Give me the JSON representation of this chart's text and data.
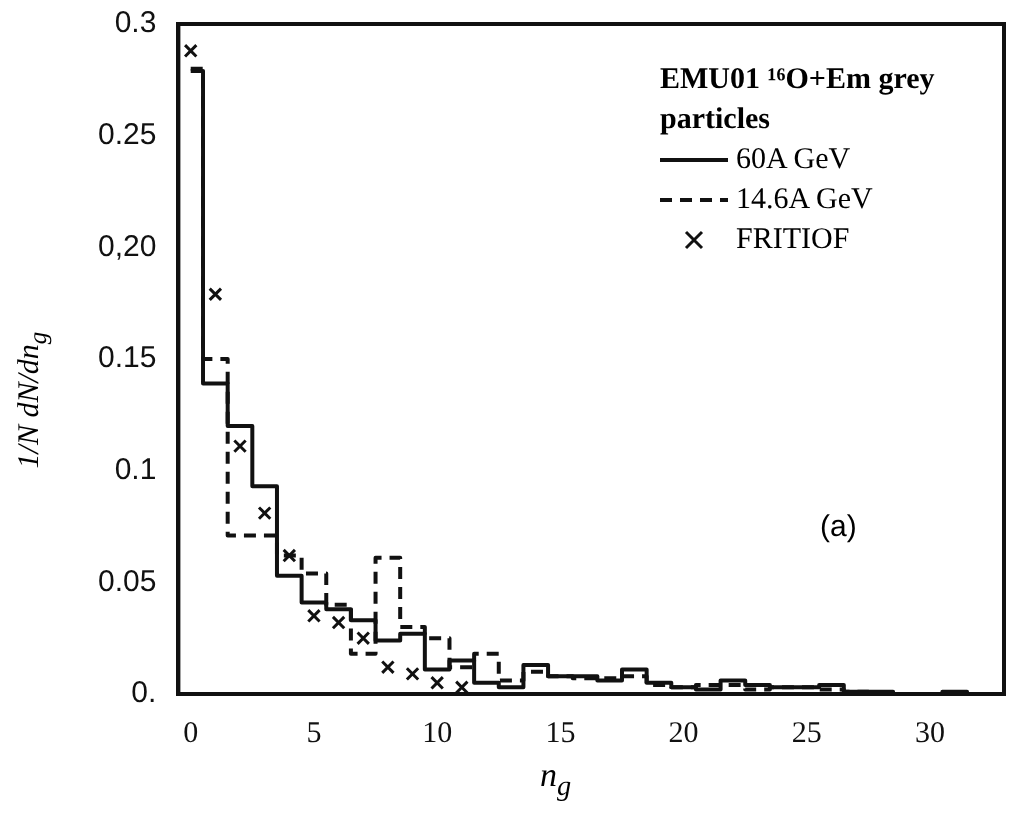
{
  "chart_data": {
    "type": "step",
    "xlabel": "n$_{g}$",
    "ylabel": "1/N dN/dn$_{g}$",
    "legend_title": "EMU01 ¹⁶O+Em grey particles",
    "legend": "top right",
    "x": [
      0,
      1,
      2,
      3,
      4,
      5,
      6,
      7,
      8,
      9,
      10,
      11,
      12,
      13,
      14,
      15,
      16,
      17,
      18,
      19,
      20,
      21,
      22,
      23,
      24,
      25,
      26,
      27,
      28,
      29,
      30,
      31,
      32
    ],
    "series": [
      {
        "name": "60A GeV",
        "color": "#111111",
        "line_style": "solid",
        "values": [
          0.279,
          0.139,
          0.12,
          0.093,
          0.053,
          0.041,
          0.038,
          0.033,
          0.024,
          0.027,
          0.011,
          0.015,
          0.005,
          0.003,
          0.013,
          0.008,
          0.008,
          0.006,
          0.011,
          0.005,
          0.003,
          0.002,
          0.006,
          0.004,
          0.003,
          0.003,
          0.004,
          0.001,
          0.001,
          0,
          0,
          0.001,
          0
        ]
      },
      {
        "name": "14.6A GeV",
        "color": "#111111",
        "line_style": "dashed",
        "values": [
          0.28,
          0.15,
          0.071,
          0.071,
          0.062,
          0.054,
          0.04,
          0.018,
          0.061,
          0.03,
          0.025,
          0.012,
          0.018,
          0.006,
          0.01,
          0.008,
          0.007,
          0.007,
          0.008,
          0.004,
          0.003,
          0.004,
          0.004,
          0.002,
          0.003,
          0.003,
          0.002,
          0.001,
          0,
          0,
          0,
          0,
          0
        ]
      },
      {
        "type": "scatter",
        "name": "FRITIOF",
        "color": "#111111",
        "marker": "cross",
        "x": [
          0,
          1,
          2,
          3,
          4,
          5,
          6,
          7,
          8,
          9,
          10,
          11
        ],
        "values": [
          0.288,
          0.179,
          0.111,
          0.081,
          0.062,
          0.035,
          0.032,
          0.025,
          0.012,
          0.009,
          0.005,
          0.003
        ]
      }
    ],
    "xlim": [
      -0.5,
      33
    ],
    "xticks": [
      0,
      5,
      10,
      15,
      20,
      25,
      30
    ],
    "ylim": [
      0,
      0.3
    ],
    "yticks": [
      {
        "value": 0,
        "label": "0."
      },
      0.05,
      0.1,
      0.15,
      {
        "value": 0.2,
        "label": "0,20"
      },
      0.25,
      0.3
    ],
    "annotations": [
      "(a)"
    ]
  }
}
